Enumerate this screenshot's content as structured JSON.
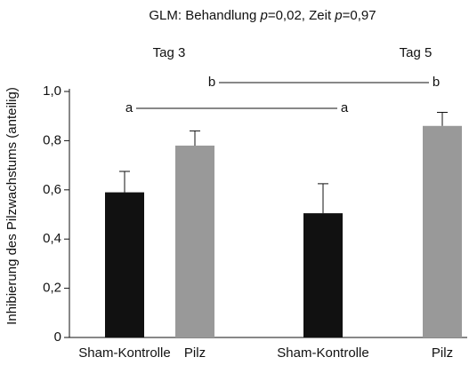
{
  "chart_data": {
    "type": "bar",
    "title_parts": [
      "GLM: Behandlung ",
      "p",
      "=0,02, Zeit ",
      "p",
      "=0,97"
    ],
    "ylabel": "Inhibierung des Pilzwachstums (anteilig)",
    "groups": [
      "Tag 3",
      "Tag 5"
    ],
    "categories": [
      "Sham-Kontrolle",
      "Pilz",
      "Sham-Kontrolle",
      "Pilz"
    ],
    "values": [
      0.59,
      0.78,
      0.505,
      0.86
    ],
    "errors": [
      0.085,
      0.06,
      0.12,
      0.055
    ],
    "colors": [
      "#111111",
      "#999999",
      "#111111",
      "#999999"
    ],
    "annotations": [
      "a",
      "a",
      "b",
      "b"
    ],
    "ylim": [
      0,
      1.0
    ],
    "yticks": [
      0,
      {
        "value": 0.2,
        "label": "0,2"
      },
      {
        "value": 0.4,
        "label": "0,4"
      },
      {
        "value": 0.6,
        "label": "0,6"
      },
      {
        "value": 0.8,
        "label": "0,8"
      },
      {
        "value": 1.0,
        "label": "1,0"
      }
    ]
  }
}
